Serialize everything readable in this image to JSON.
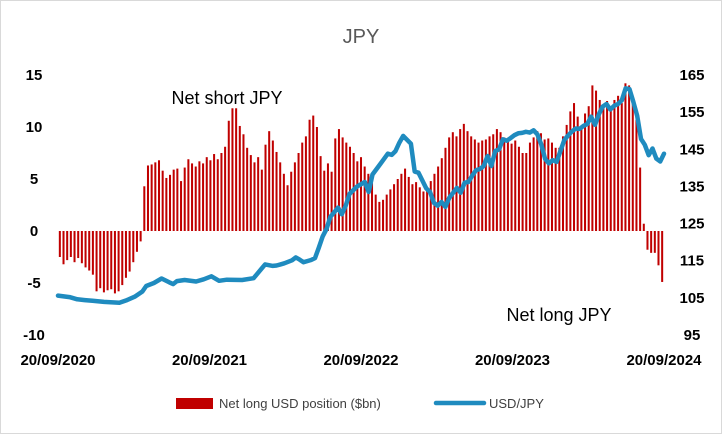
{
  "chart_data": {
    "type": "bar+line",
    "title": "JPY",
    "x_tick_labels": [
      "20/09/2020",
      "20/09/2021",
      "20/09/2022",
      "20/09/2023",
      "20/09/2024"
    ],
    "y_left": {
      "ylim": [
        -10,
        15
      ],
      "ticks": [
        15,
        10,
        5,
        0,
        -5,
        -10
      ]
    },
    "y_right": {
      "ylim": [
        95,
        165
      ],
      "ticks": [
        165,
        155,
        145,
        135,
        125,
        115,
        105,
        95
      ]
    },
    "annotations": [
      "Net short JPY",
      "Net long JPY"
    ],
    "colors": {
      "bars": "#c00000",
      "line": "#1f8bbf"
    },
    "series": [
      {
        "name": "Net long USD position ($bn)",
        "type": "bar",
        "axis": "left",
        "values": [
          -2.5,
          -3.2,
          -2.8,
          -2.5,
          -3,
          -2.6,
          -3.1,
          -3.5,
          -3.8,
          -4.2,
          -5.8,
          -5.5,
          -5.9,
          -5.7,
          -5.6,
          -6,
          -5.8,
          -5.2,
          -4.5,
          -3.9,
          -3,
          -2,
          -1,
          4.3,
          6.3,
          6.4,
          6.6,
          6.8,
          5.8,
          5.1,
          5.4,
          5.9,
          6,
          4.8,
          6.1,
          6.9,
          6.5,
          6.2,
          6.7,
          6.5,
          7.1,
          6.8,
          7.4,
          6.9,
          7.5,
          8.1,
          10.6,
          11.8,
          11.8,
          10.1,
          9.3,
          8,
          7.3,
          6.6,
          7.1,
          5.9,
          8.3,
          9.6,
          8.7,
          7.6,
          6.6,
          5.5,
          4.4,
          5.7,
          6.6,
          7.5,
          8.5,
          9.1,
          10.7,
          11.1,
          10,
          7.2,
          5.8,
          6.5,
          5.7,
          8.9,
          9.8,
          9,
          8.5,
          8.1,
          7.5,
          6.7,
          7.1,
          6.2,
          5.5,
          4.6,
          3.5,
          2.8,
          3,
          3.5,
          4,
          4.5,
          5,
          5.5,
          6,
          5.2,
          4.5,
          4.7,
          4.2,
          3.8,
          4.2,
          4.8,
          5.5,
          6.2,
          7,
          8,
          9,
          9.5,
          9.1,
          9.8,
          10.3,
          9.6,
          9.1,
          8.8,
          8.5,
          8.7,
          8.8,
          9.1,
          9.3,
          9.8,
          9.5,
          9,
          8.6,
          8.4,
          8.7,
          8.1,
          7.5,
          7.5,
          8.5,
          9,
          9.6,
          9.4,
          8.8,
          8.9,
          8.5,
          8,
          8,
          9.1,
          10.2,
          11.5,
          12.3,
          11,
          10,
          11.3,
          12,
          14,
          13.5,
          12.6,
          11.9,
          12.5,
          11.6,
          12.6,
          13,
          12.3,
          14.2,
          14,
          12.4,
          10.7,
          6.1,
          0.7,
          -1.8,
          -2.1,
          -2.1,
          -3.3,
          -4.9
        ]
      },
      {
        "name": "USD/JPY",
        "type": "line",
        "axis": "right",
        "x_range": [
          0,
          158
        ],
        "points": [
          [
            0,
            105.6
          ],
          [
            3,
            105.2
          ],
          [
            5,
            104.6
          ],
          [
            7,
            104.4
          ],
          [
            9,
            104.2
          ],
          [
            12,
            103.9
          ],
          [
            16,
            103.7
          ],
          [
            18,
            104.4
          ],
          [
            20,
            105.3
          ],
          [
            22,
            106.7
          ],
          [
            23,
            108.2
          ],
          [
            25,
            109
          ],
          [
            27,
            110.2
          ],
          [
            29,
            109.2
          ],
          [
            30,
            108.7
          ],
          [
            31,
            109.5
          ],
          [
            33,
            109.8
          ],
          [
            36,
            109.4
          ],
          [
            38,
            110
          ],
          [
            40,
            110.8
          ],
          [
            42,
            109.6
          ],
          [
            44,
            109.9
          ],
          [
            48,
            109.8
          ],
          [
            51,
            110.3
          ],
          [
            53,
            112.8
          ],
          [
            54,
            114
          ],
          [
            56,
            113.6
          ],
          [
            57,
            113.7
          ],
          [
            58,
            114
          ],
          [
            59,
            114.3
          ],
          [
            61,
            115.1
          ],
          [
            62,
            115.9
          ],
          [
            63,
            115.3
          ],
          [
            64,
            114.6
          ],
          [
            65,
            114.9
          ],
          [
            66,
            115.2
          ],
          [
            67,
            115.7
          ],
          [
            68,
            118.5
          ],
          [
            69,
            121.5
          ],
          [
            70,
            123.5
          ],
          [
            71,
            126.8
          ],
          [
            72,
            128
          ],
          [
            73,
            129.3
          ],
          [
            74,
            127.5
          ],
          [
            75,
            129.8
          ],
          [
            76,
            133
          ],
          [
            78,
            135
          ],
          [
            80,
            136.2
          ],
          [
            81,
            133.5
          ],
          [
            82,
            138.2
          ],
          [
            84,
            141
          ],
          [
            86,
            143.8
          ],
          [
            87,
            143.5
          ],
          [
            88,
            144.5
          ],
          [
            89,
            146.8
          ],
          [
            90,
            148.6
          ],
          [
            92,
            146.5
          ],
          [
            93,
            139
          ],
          [
            94,
            138.7
          ],
          [
            96,
            134.5
          ],
          [
            97,
            133.5
          ],
          [
            98,
            130.6
          ],
          [
            99,
            129.8
          ],
          [
            100,
            130.8
          ],
          [
            101,
            129.5
          ],
          [
            102,
            131.9
          ],
          [
            104,
            134.6
          ],
          [
            105,
            133.3
          ],
          [
            106,
            136
          ],
          [
            107,
            136.2
          ],
          [
            108,
            137.9
          ],
          [
            109,
            139.4
          ],
          [
            110,
            139.7
          ],
          [
            111,
            140.5
          ],
          [
            112,
            143.2
          ],
          [
            113,
            140.5
          ],
          [
            114,
            144.5
          ],
          [
            115,
            145
          ],
          [
            116,
            147.7
          ],
          [
            117,
            147.3
          ],
          [
            118,
            148
          ],
          [
            119,
            148.8
          ],
          [
            120,
            149.3
          ],
          [
            121,
            149.4
          ],
          [
            122,
            149.7
          ],
          [
            123,
            149.5
          ],
          [
            124,
            150.1
          ],
          [
            125,
            149
          ],
          [
            126,
            146.3
          ],
          [
            127,
            142.4
          ],
          [
            128,
            141.2
          ],
          [
            129,
            142.1
          ],
          [
            130,
            141.6
          ],
          [
            131,
            144.5
          ],
          [
            132,
            147.5
          ],
          [
            133,
            148.7
          ],
          [
            134,
            149.8
          ],
          [
            135,
            150.6
          ],
          [
            136,
            150.5
          ],
          [
            137,
            151.3
          ],
          [
            138,
            151.8
          ],
          [
            139,
            153.8
          ],
          [
            140,
            151.6
          ],
          [
            141,
            154.4
          ],
          [
            142,
            156.5
          ],
          [
            143,
            157.2
          ],
          [
            144,
            155.7
          ],
          [
            145,
            156.7
          ],
          [
            146,
            157.2
          ],
          [
            147,
            158.2
          ],
          [
            148,
            161.4
          ],
          [
            149,
            161.2
          ],
          [
            150,
            157.8
          ],
          [
            151,
            154
          ],
          [
            152,
            147.8
          ],
          [
            153,
            146.2
          ],
          [
            154,
            143.4
          ],
          [
            155,
            145.2
          ],
          [
            156,
            142.5
          ],
          [
            157,
            141.7
          ],
          [
            158,
            143.8
          ]
        ]
      }
    ],
    "legend": {
      "position": "bottom",
      "entries": [
        "Net long USD position ($bn)",
        "USD/JPY"
      ]
    }
  }
}
